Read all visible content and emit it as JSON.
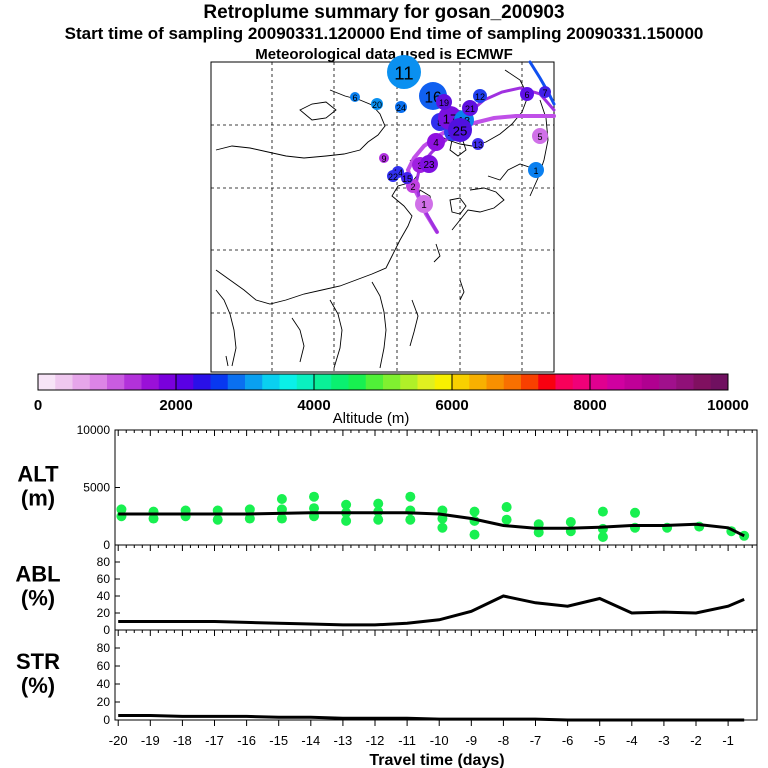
{
  "header": {
    "title": "Retroplume summary for gosan_200903",
    "sampling_line": "Start time of sampling 20090331.120000     End time of sampling 20090331.150000",
    "met_line": "Meteorological data used is ECMWF"
  },
  "colorbar": {
    "ticks": [
      "0",
      "2000",
      "4000",
      "6000",
      "8000",
      "10000"
    ],
    "label": "Altitude (m)",
    "colors": [
      "#f7e4f7",
      "#efc8ef",
      "#e6a6ea",
      "#dc84e6",
      "#c95ce0",
      "#b232da",
      "#9a10d8",
      "#7a00dc",
      "#5a00e4",
      "#2a10e8",
      "#0838f0",
      "#0a70f0",
      "#0aa0f0",
      "#0ad0f0",
      "#0af0e8",
      "#0af0c0",
      "#0af098",
      "#0af070",
      "#18f050",
      "#50f038",
      "#80f030",
      "#b0f028",
      "#e0f020",
      "#f8f000",
      "#f8d000",
      "#f8b000",
      "#f89000",
      "#f87000",
      "#f84000",
      "#f80010",
      "#f8005a",
      "#f00078",
      "#e00090",
      "#d000a0",
      "#c00098",
      "#b00090",
      "#a0108c",
      "#901078",
      "#801060",
      "#701060"
    ]
  },
  "map_labels": [
    {
      "text": "1",
      "color": "#d070e8"
    },
    {
      "text": "2",
      "color": "#c040e0"
    },
    {
      "text": "3",
      "color": "#a020e0"
    },
    {
      "text": "4",
      "color": "#9010e0"
    },
    {
      "text": "5",
      "color": "#d070e8"
    },
    {
      "text": "6",
      "color": "#6010e8"
    },
    {
      "text": "7",
      "color": "#4020e8"
    },
    {
      "text": "8",
      "color": "#3030ee"
    },
    {
      "text": "9",
      "color": "#b030e0"
    },
    {
      "text": "10",
      "color": "#2a40ee"
    },
    {
      "text": "11",
      "color": "#0a90f0"
    },
    {
      "text": "12",
      "color": "#2040ee"
    },
    {
      "text": "13",
      "color": "#4030ee"
    },
    {
      "text": "14",
      "color": "#3030ee"
    },
    {
      "text": "15",
      "color": "#4020ee"
    },
    {
      "text": "16",
      "color": "#1060f0"
    },
    {
      "text": "17",
      "color": "#7a10e0"
    },
    {
      "text": "18",
      "color": "#0a80f0"
    },
    {
      "text": "19",
      "color": "#6010e0"
    },
    {
      "text": "20",
      "color": "#0a90f0"
    },
    {
      "text": "21",
      "color": "#6010e0"
    },
    {
      "text": "22",
      "color": "#3030ee"
    },
    {
      "text": "23",
      "color": "#8010e0"
    },
    {
      "text": "24",
      "color": "#0a70f0"
    },
    {
      "text": "25",
      "color": "#5010e0"
    },
    {
      "text": "6",
      "color": "#0a80f0"
    },
    {
      "text": "1",
      "color": "#0a80f0"
    }
  ],
  "chart_data": [
    {
      "type": "line",
      "panel": "ALT",
      "ylabel": "ALT\n(m)",
      "ylabel_lines": [
        "ALT",
        "(m)"
      ],
      "ylim": [
        0,
        10000
      ],
      "yticks": [
        "10000",
        "5000",
        "0"
      ],
      "x": [
        -20,
        -19,
        -18,
        -17,
        -16,
        -15,
        -14,
        -13,
        -12,
        -11,
        -10,
        -9,
        -8,
        -7,
        -6,
        -5,
        -4,
        -3,
        -2,
        -1,
        -0.5
      ],
      "y": [
        2700,
        2700,
        2700,
        2700,
        2700,
        2750,
        2800,
        2800,
        2800,
        2800,
        2700,
        2300,
        1700,
        1450,
        1450,
        1550,
        1700,
        1700,
        1800,
        1500,
        800
      ],
      "scatter_color": "#18f050",
      "scatter": [
        {
          "x": -19.9,
          "y": 3100
        },
        {
          "x": -19.9,
          "y": 2500
        },
        {
          "x": -18.9,
          "y": 2900
        },
        {
          "x": -18.9,
          "y": 2300
        },
        {
          "x": -17.9,
          "y": 3000
        },
        {
          "x": -17.9,
          "y": 2500
        },
        {
          "x": -16.9,
          "y": 3000
        },
        {
          "x": -16.9,
          "y": 2200
        },
        {
          "x": -15.9,
          "y": 3100
        },
        {
          "x": -15.9,
          "y": 2300
        },
        {
          "x": -14.9,
          "y": 4000
        },
        {
          "x": -14.9,
          "y": 3100
        },
        {
          "x": -14.9,
          "y": 2300
        },
        {
          "x": -13.9,
          "y": 4200
        },
        {
          "x": -13.9,
          "y": 3200
        },
        {
          "x": -13.9,
          "y": 2500
        },
        {
          "x": -12.9,
          "y": 3500
        },
        {
          "x": -12.9,
          "y": 2800
        },
        {
          "x": -12.9,
          "y": 2100
        },
        {
          "x": -11.9,
          "y": 3600
        },
        {
          "x": -11.9,
          "y": 2900
        },
        {
          "x": -11.9,
          "y": 2200
        },
        {
          "x": -10.9,
          "y": 4200
        },
        {
          "x": -10.9,
          "y": 3000
        },
        {
          "x": -10.9,
          "y": 2200
        },
        {
          "x": -9.9,
          "y": 3000
        },
        {
          "x": -9.9,
          "y": 2300
        },
        {
          "x": -9.9,
          "y": 1500
        },
        {
          "x": -8.9,
          "y": 2900
        },
        {
          "x": -8.9,
          "y": 2100
        },
        {
          "x": -8.9,
          "y": 900
        },
        {
          "x": -7.9,
          "y": 3300
        },
        {
          "x": -7.9,
          "y": 2200
        },
        {
          "x": -6.9,
          "y": 1800
        },
        {
          "x": -6.9,
          "y": 1100
        },
        {
          "x": -5.9,
          "y": 2000
        },
        {
          "x": -5.9,
          "y": 1200
        },
        {
          "x": -4.9,
          "y": 2900
        },
        {
          "x": -4.9,
          "y": 1400
        },
        {
          "x": -4.9,
          "y": 700
        },
        {
          "x": -3.9,
          "y": 2800
        },
        {
          "x": -3.9,
          "y": 1500
        },
        {
          "x": -2.9,
          "y": 1500
        },
        {
          "x": -1.9,
          "y": 1600
        },
        {
          "x": -0.9,
          "y": 1200
        },
        {
          "x": -0.5,
          "y": 800
        }
      ]
    },
    {
      "type": "line",
      "panel": "ABL",
      "ylabel": "ABL\n(%)",
      "ylabel_lines": [
        "ABL",
        "(%)"
      ],
      "ylim": [
        0,
        100
      ],
      "yticks": [
        "80",
        "60",
        "40",
        "20",
        "0"
      ],
      "x": [
        -20,
        -19,
        -18,
        -17,
        -16,
        -15,
        -14,
        -13,
        -12,
        -11,
        -10,
        -9,
        -8,
        -7,
        -6,
        -5,
        -4,
        -3,
        -2,
        -1,
        -0.5
      ],
      "y": [
        10,
        10,
        10,
        10,
        9,
        8,
        7,
        6,
        6,
        8,
        12,
        22,
        40,
        32,
        28,
        37,
        20,
        21,
        20,
        28,
        36
      ]
    },
    {
      "type": "line",
      "panel": "STR",
      "ylabel": "STR\n(%)",
      "ylabel_lines": [
        "STR",
        "(%)"
      ],
      "ylim": [
        0,
        100
      ],
      "yticks": [
        "80",
        "60",
        "40",
        "20",
        "0"
      ],
      "x": [
        -20,
        -19,
        -18,
        -17,
        -16,
        -15,
        -14,
        -13,
        -12,
        -11,
        -10,
        -9,
        -8,
        -7,
        -6,
        -5,
        -4,
        -3,
        -2,
        -1,
        -0.5
      ],
      "y": [
        5,
        5,
        4,
        4,
        4,
        3,
        3,
        2,
        2,
        2,
        1,
        1,
        1,
        1,
        0,
        0,
        0,
        0,
        0,
        0,
        0
      ]
    }
  ],
  "xaxis": {
    "label": "Travel time (days)",
    "ticks": [
      "-20",
      "-19",
      "-18",
      "-17",
      "-16",
      "-15",
      "-14",
      "-13",
      "-12",
      "-11",
      "-10",
      "-9",
      "-8",
      "-7",
      "-6",
      "-5",
      "-4",
      "-3",
      "-2",
      "-1"
    ]
  }
}
